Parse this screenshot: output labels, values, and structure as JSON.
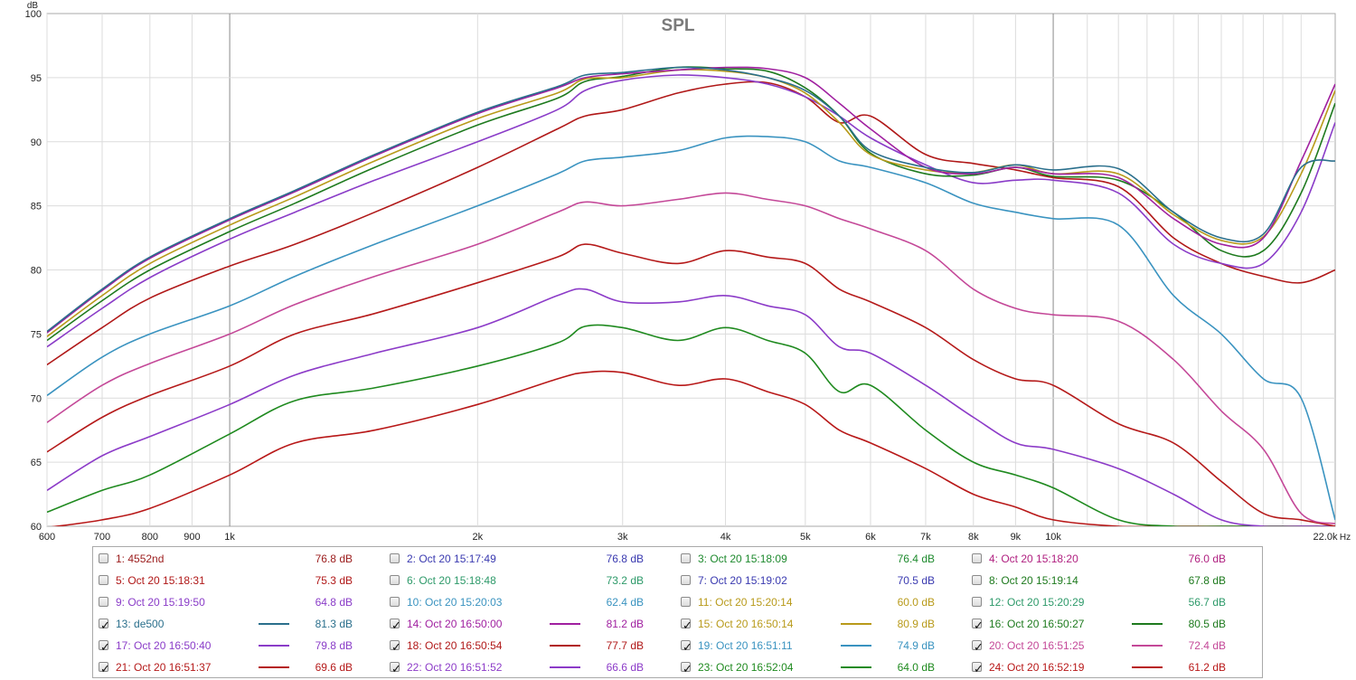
{
  "chart_data": {
    "type": "line",
    "title": "SPL",
    "ylabel": "dB",
    "xlabel": "Hz",
    "x_scale": "log",
    "xlim": [
      600,
      22000
    ],
    "ylim": [
      60,
      100
    ],
    "grid": true,
    "legend_position": "bottom",
    "y_ticks": [
      "60",
      "65",
      "70",
      "75",
      "80",
      "85",
      "90",
      "95",
      "100"
    ],
    "x_ticks": [
      {
        "v": 600,
        "label": "600"
      },
      {
        "v": 700,
        "label": "700"
      },
      {
        "v": 800,
        "label": "800"
      },
      {
        "v": 900,
        "label": "900"
      },
      {
        "v": 1000,
        "label": "1k"
      },
      {
        "v": 2000,
        "label": "2k"
      },
      {
        "v": 3000,
        "label": "3k"
      },
      {
        "v": 4000,
        "label": "4k"
      },
      {
        "v": 5000,
        "label": "5k"
      },
      {
        "v": 6000,
        "label": "6k"
      },
      {
        "v": 7000,
        "label": "7k"
      },
      {
        "v": 8000,
        "label": "8k"
      },
      {
        "v": 9000,
        "label": "9k"
      },
      {
        "v": 10000,
        "label": "10k"
      },
      {
        "v": 22000,
        "label": "22.0k"
      }
    ],
    "x": [
      600,
      700,
      800,
      1000,
      1200,
      1500,
      2000,
      2500,
      2700,
      3000,
      3500,
      4000,
      4500,
      5000,
      5500,
      6000,
      7000,
      8000,
      9000,
      10000,
      12000,
      14000,
      16000,
      18000,
      20000,
      22000
    ],
    "series": [
      {
        "name": "13: de500",
        "color": "#2a6f8c",
        "values": [
          75.2,
          78.5,
          81.0,
          84.0,
          86.2,
          89.0,
          92.3,
          94.3,
          95.2,
          95.4,
          95.8,
          95.6,
          95.0,
          94.0,
          92.0,
          89.3,
          88.0,
          87.6,
          88.2,
          87.8,
          87.9,
          84.5,
          82.5,
          82.8,
          88.0,
          88.5
        ]
      },
      {
        "name": "14: Oct 20 16:50:00",
        "color": "#a020a0",
        "values": [
          75.1,
          78.4,
          80.9,
          83.9,
          86.1,
          88.9,
          92.2,
          94.2,
          95.0,
          95.3,
          95.6,
          95.8,
          95.7,
          95.0,
          93.0,
          91.0,
          88.0,
          87.5,
          88.0,
          87.5,
          87.2,
          84.0,
          82.0,
          82.5,
          88.5,
          94.5
        ]
      },
      {
        "name": "15: Oct 20 16:50:14",
        "color": "#b89a1a",
        "values": [
          74.8,
          78.0,
          80.5,
          83.5,
          85.7,
          88.5,
          91.8,
          93.8,
          94.9,
          95.0,
          95.6,
          95.5,
          95.0,
          93.8,
          91.5,
          89.0,
          87.8,
          87.6,
          88.2,
          87.5,
          87.5,
          84.3,
          82.3,
          82.6,
          87.5,
          94.0
        ]
      },
      {
        "name": "16: Oct 20 16:50:27",
        "color": "#1e7a1e",
        "values": [
          74.5,
          77.6,
          80.0,
          83.0,
          85.2,
          88.0,
          91.3,
          93.4,
          94.7,
          95.1,
          95.8,
          95.7,
          95.5,
          94.2,
          92.0,
          89.1,
          87.5,
          87.4,
          88.0,
          87.3,
          87.0,
          84.5,
          81.5,
          81.5,
          86.0,
          93.0
        ]
      },
      {
        "name": "17: Oct 20 16:50:40",
        "color": "#8a3cc8",
        "values": [
          74.0,
          77.0,
          79.4,
          82.4,
          84.5,
          87.0,
          90.0,
          92.5,
          94.0,
          94.8,
          95.2,
          95.0,
          94.5,
          93.5,
          92.0,
          90.3,
          88.2,
          86.8,
          87.0,
          87.0,
          86.0,
          82.0,
          80.5,
          80.5,
          84.5,
          91.5
        ]
      },
      {
        "name": "18: Oct 20 16:50:54",
        "color": "#b01818",
        "values": [
          72.6,
          75.5,
          77.8,
          80.3,
          82.0,
          84.5,
          88.0,
          91.0,
          92.0,
          92.5,
          93.8,
          94.5,
          94.6,
          93.5,
          91.5,
          92.0,
          89.0,
          88.3,
          87.8,
          87.2,
          86.5,
          82.5,
          80.5,
          79.5,
          79.0,
          80.0
        ]
      },
      {
        "name": "19: Oct 20 16:51:11",
        "color": "#3a93c0",
        "values": [
          70.2,
          73.2,
          75.0,
          77.2,
          79.5,
          82.0,
          85.0,
          87.5,
          88.5,
          88.8,
          89.3,
          90.3,
          90.4,
          90.0,
          88.5,
          88.0,
          86.8,
          85.2,
          84.5,
          84.0,
          83.5,
          78.0,
          75.0,
          71.5,
          70.0,
          60.5
        ]
      },
      {
        "name": "20: Oct 20 16:51:25",
        "color": "#c44898",
        "values": [
          68.1,
          71.0,
          72.7,
          75.0,
          77.3,
          79.5,
          82.0,
          84.5,
          85.3,
          85.0,
          85.5,
          86.0,
          85.5,
          85.0,
          84.0,
          83.2,
          81.5,
          78.5,
          77.0,
          76.5,
          76.0,
          73.0,
          69.0,
          66.0,
          61.0,
          60.2
        ]
      },
      {
        "name": "21: Oct 20 16:51:37",
        "color": "#b51a1a",
        "values": [
          65.8,
          68.5,
          70.2,
          72.5,
          75.0,
          76.6,
          79.0,
          81.0,
          82.0,
          81.3,
          80.5,
          81.5,
          81.0,
          80.5,
          78.5,
          77.5,
          75.5,
          73.0,
          71.5,
          71.0,
          68.0,
          66.5,
          63.5,
          61.0,
          60.5,
          60.0
        ]
      },
      {
        "name": "22: Oct 20 16:51:52",
        "color": "#8c3bc8",
        "values": [
          62.8,
          65.5,
          67.0,
          69.5,
          71.8,
          73.5,
          75.5,
          78.0,
          78.5,
          77.5,
          77.5,
          78.0,
          77.2,
          76.5,
          74.0,
          73.5,
          71.0,
          68.5,
          66.5,
          66.0,
          64.5,
          62.5,
          60.5,
          60.0,
          60.0,
          60.0
        ]
      },
      {
        "name": "23: Oct 20 16:52:04",
        "color": "#1f8a1f",
        "values": [
          61.1,
          62.8,
          64.0,
          67.2,
          69.8,
          70.8,
          72.5,
          74.3,
          75.6,
          75.5,
          74.5,
          75.5,
          74.5,
          73.5,
          70.5,
          71.0,
          67.5,
          65.0,
          64.0,
          63.0,
          60.5,
          60.0,
          60.0,
          60.0,
          60.0,
          60.0
        ]
      },
      {
        "name": "24: Oct 20 16:52:19",
        "color": "#b81818",
        "values": [
          59.9,
          60.5,
          61.4,
          64.0,
          66.5,
          67.5,
          69.5,
          71.5,
          72.0,
          72.0,
          71.0,
          71.5,
          70.5,
          69.5,
          67.5,
          66.5,
          64.5,
          62.5,
          61.5,
          60.5,
          60.0,
          60.0,
          60.0,
          60.0,
          60.0,
          60.0
        ]
      }
    ]
  },
  "legend": {
    "items": [
      {
        "label": "1: 4552nd",
        "value": "76.8 dB",
        "checked": false,
        "color": "#9b1c1c"
      },
      {
        "label": "2: Oct 20 15:17:49",
        "value": "76.8 dB",
        "checked": false,
        "color": "#3a3ab0"
      },
      {
        "label": "3: Oct 20 15:18:09",
        "value": "76.4 dB",
        "checked": false,
        "color": "#1e8a2e"
      },
      {
        "label": "4: Oct 20 15:18:20",
        "value": "76.0 dB",
        "checked": false,
        "color": "#b02080"
      },
      {
        "label": "5: Oct 20 15:18:31",
        "value": "75.3 dB",
        "checked": false,
        "color": "#b01818"
      },
      {
        "label": "6: Oct 20 15:18:48",
        "value": "73.2 dB",
        "checked": false,
        "color": "#2e9a6a"
      },
      {
        "label": "7: Oct 20 15:19:02",
        "value": "70.5 dB",
        "checked": false,
        "color": "#3a3ab0"
      },
      {
        "label": "8: Oct 20 15:19:14",
        "value": "67.8 dB",
        "checked": false,
        "color": "#1e7a1e"
      },
      {
        "label": "9: Oct 20 15:19:50",
        "value": "64.8 dB",
        "checked": false,
        "color": "#8a3cc8"
      },
      {
        "label": "10: Oct 20 15:20:03",
        "value": "62.4 dB",
        "checked": false,
        "color": "#3a93c0"
      },
      {
        "label": "11: Oct 20 15:20:14",
        "value": "60.0 dB",
        "checked": false,
        "color": "#b89a1a"
      },
      {
        "label": "12: Oct 20 15:20:29",
        "value": "56.7 dB",
        "checked": false,
        "color": "#2e9a6a"
      },
      {
        "label": "13: de500",
        "value": "81.3 dB",
        "checked": true,
        "color": "#2a6f8c"
      },
      {
        "label": "14: Oct 20 16:50:00",
        "value": "81.2 dB",
        "checked": true,
        "color": "#a020a0"
      },
      {
        "label": "15: Oct 20 16:50:14",
        "value": "80.9 dB",
        "checked": true,
        "color": "#b89a1a"
      },
      {
        "label": "16: Oct 20 16:50:27",
        "value": "80.5 dB",
        "checked": true,
        "color": "#1e7a1e"
      },
      {
        "label": "17: Oct 20 16:50:40",
        "value": "79.8 dB",
        "checked": true,
        "color": "#8a3cc8"
      },
      {
        "label": "18: Oct 20 16:50:54",
        "value": "77.7 dB",
        "checked": true,
        "color": "#b01818"
      },
      {
        "label": "19: Oct 20 16:51:11",
        "value": "74.9 dB",
        "checked": true,
        "color": "#3a93c0"
      },
      {
        "label": "20: Oct 20 16:51:25",
        "value": "72.4 dB",
        "checked": true,
        "color": "#c44898"
      },
      {
        "label": "21: Oct 20 16:51:37",
        "value": "69.6 dB",
        "checked": true,
        "color": "#b51a1a"
      },
      {
        "label": "22: Oct 20 16:51:52",
        "value": "66.6 dB",
        "checked": true,
        "color": "#8c3bc8"
      },
      {
        "label": "23: Oct 20 16:52:04",
        "value": "64.0 dB",
        "checked": true,
        "color": "#1f8a1f"
      },
      {
        "label": "24: Oct 20 16:52:19",
        "value": "61.2 dB",
        "checked": true,
        "color": "#b81818"
      }
    ]
  }
}
